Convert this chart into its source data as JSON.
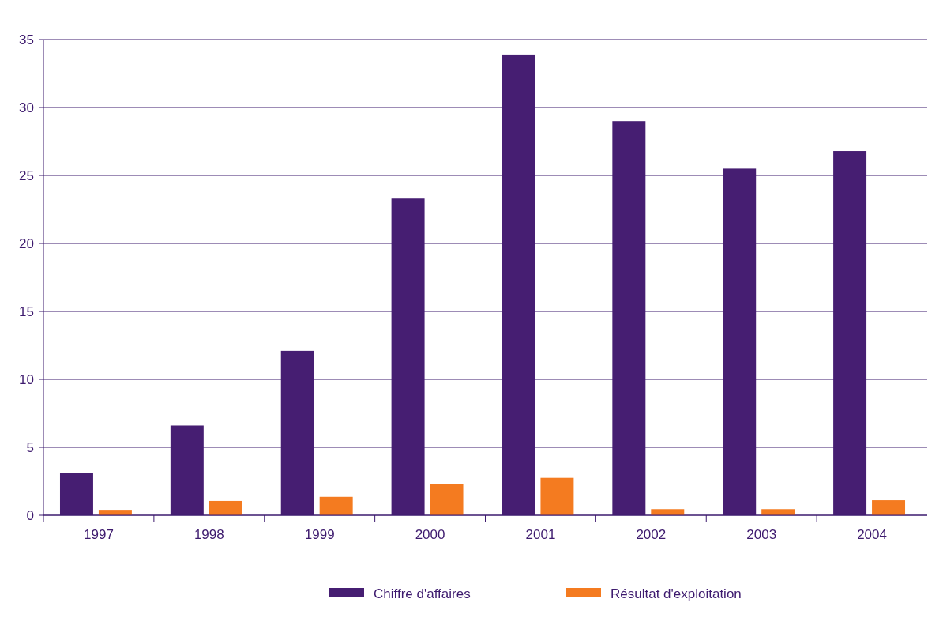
{
  "chart_data": {
    "type": "bar",
    "categories": [
      "1997",
      "1998",
      "1999",
      "2000",
      "2001",
      "2002",
      "2003",
      "2004"
    ],
    "series": [
      {
        "name": "Chiffre d'affaires",
        "color": "#461e72",
        "values": [
          3.1,
          6.6,
          12.1,
          23.3,
          33.9,
          29,
          25.5,
          26.8
        ]
      },
      {
        "name": "Résultat d'exploitation",
        "color": "#f47b20",
        "values": [
          0.4,
          1.05,
          1.35,
          2.3,
          2.75,
          0.45,
          0.45,
          1.1
        ]
      }
    ],
    "ylim": [
      0,
      35
    ],
    "yticks": [
      0,
      5,
      10,
      15,
      20,
      25,
      30,
      35
    ],
    "grid": "y",
    "legend": "bottom"
  }
}
